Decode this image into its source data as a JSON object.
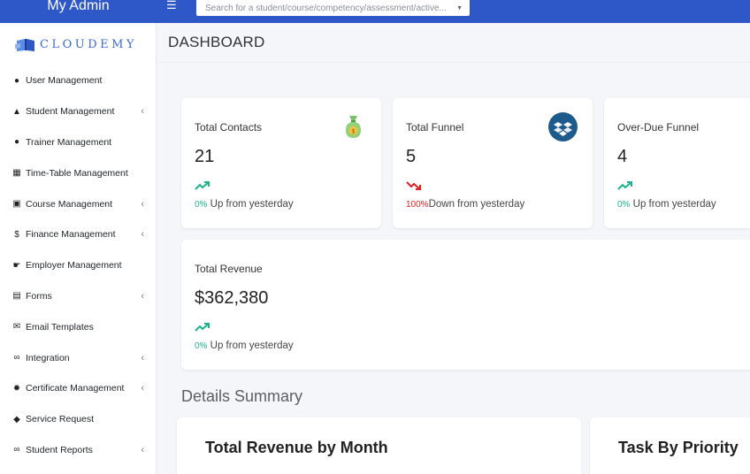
{
  "topbar": {
    "brand": "My Admin",
    "search_placeholder": "Search for a student/course/competency/assessment/active..."
  },
  "sidebar": {
    "logo_text": "CLOUDEMY",
    "items": [
      {
        "label": "User Management",
        "icon": "users-icon",
        "has_submenu": false
      },
      {
        "label": "Student Management",
        "icon": "graduation-cap-icon",
        "has_submenu": true
      },
      {
        "label": "Trainer Management",
        "icon": "users-icon",
        "has_submenu": false
      },
      {
        "label": "Time-Table Management",
        "icon": "calendar-icon",
        "has_submenu": false
      },
      {
        "label": "Course Management",
        "icon": "copy-icon",
        "has_submenu": true
      },
      {
        "label": "Finance Management",
        "icon": "dollar-icon",
        "has_submenu": true
      },
      {
        "label": "Employer Management",
        "icon": "hand-point-icon",
        "has_submenu": false
      },
      {
        "label": "Forms",
        "icon": "file-icon",
        "has_submenu": true
      },
      {
        "label": "Email Templates",
        "icon": "envelope-icon",
        "has_submenu": false
      },
      {
        "label": "Integration",
        "icon": "link-icon",
        "has_submenu": true
      },
      {
        "label": "Certificate Management",
        "icon": "certificate-icon",
        "has_submenu": true
      },
      {
        "label": "Service Request",
        "icon": "ticket-icon",
        "has_submenu": false
      },
      {
        "label": "Student Reports",
        "icon": "link-icon",
        "has_submenu": true
      }
    ]
  },
  "page": {
    "title": "DASHBOARD"
  },
  "stats": {
    "contacts": {
      "label": "Total Contacts",
      "value": "21",
      "pct": "0%",
      "text": "Up from yesterday",
      "direction": "up",
      "icon": "money-bag-icon"
    },
    "funnel": {
      "label": "Total Funnel",
      "value": "5",
      "pct": "100%",
      "text": "Down from yesterday",
      "direction": "down",
      "icon": "dropbox-icon"
    },
    "overdue": {
      "label": "Over-Due Funnel",
      "value": "4",
      "pct": "0%",
      "text": "Up from yesterday",
      "direction": "up"
    },
    "revenue": {
      "label": "Total Revenue",
      "value": "$362,380",
      "pct": "0%",
      "text": "Up from yesterday",
      "direction": "up"
    }
  },
  "details": {
    "title": "Details Summary",
    "panel_revenue_title": "Total Revenue by Month",
    "panel_priority_title": "Task By Priority"
  },
  "colors": {
    "topbar": "#2e58c8",
    "up": "#1cb48a",
    "down": "#e02020",
    "accent": "#3a6ad4"
  }
}
